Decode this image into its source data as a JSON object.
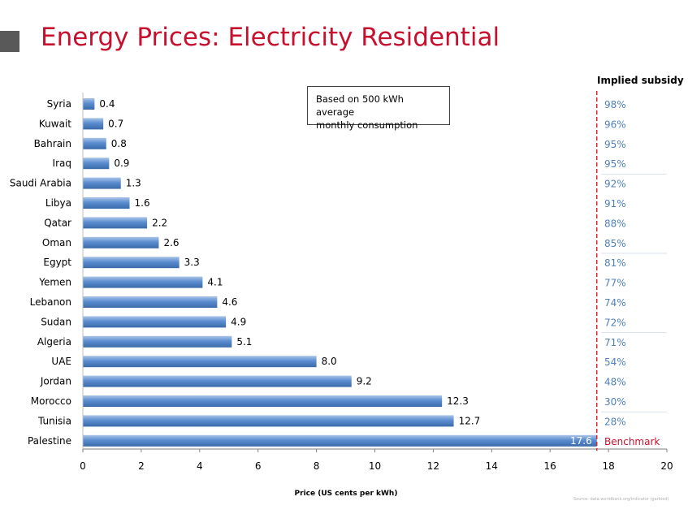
{
  "title": "Energy Prices: Electricity Residential",
  "note": {
    "line1": "Based on 500 kWh average",
    "line2": "monthly consumption"
  },
  "source": "Source: data.worldbank.org/indicator (garbled)",
  "chart_data": {
    "type": "bar",
    "orientation": "horizontal",
    "categories": [
      "Syria",
      "Kuwait",
      "Bahrain",
      "Iraq",
      "Saudi Arabia",
      "Libya",
      "Qatar",
      "Oman",
      "Egypt",
      "Yemen",
      "Lebanon",
      "Sudan",
      "Algeria",
      "UAE",
      "Jordan",
      "Morocco",
      "Tunisia",
      "Palestine"
    ],
    "values": [
      0.4,
      0.7,
      0.8,
      0.9,
      1.3,
      1.6,
      2.2,
      2.6,
      3.3,
      4.1,
      4.6,
      4.9,
      5.1,
      8.0,
      9.2,
      12.3,
      12.7,
      17.6
    ],
    "value_labels": [
      "0.4",
      "0.7",
      "0.8",
      "0.9",
      "1.3",
      "1.6",
      "2.2",
      "2.6",
      "3.3",
      "4.1",
      "4.6",
      "4.9",
      "5.1",
      "8.0",
      "9.2",
      "12.3",
      "12.7",
      "17.6"
    ],
    "xlabel": "Price (US cents per kWh)",
    "xlim": [
      0,
      20
    ],
    "xticks": [
      0,
      2,
      4,
      6,
      8,
      10,
      12,
      14,
      16,
      18,
      20
    ],
    "grid": false,
    "bar_color": "#4f81bd",
    "benchmark": {
      "value": 17.6,
      "line_color": "#e0232a",
      "label": "Benchmark"
    },
    "subsidy_header": "Implied subsidy",
    "implied_subsidy": [
      "98%",
      "96%",
      "95%",
      "95%",
      "92%",
      "91%",
      "88%",
      "85%",
      "81%",
      "77%",
      "74%",
      "72%",
      "71%",
      "54%",
      "48%",
      "30%",
      "28%",
      "Benchmark"
    ]
  }
}
